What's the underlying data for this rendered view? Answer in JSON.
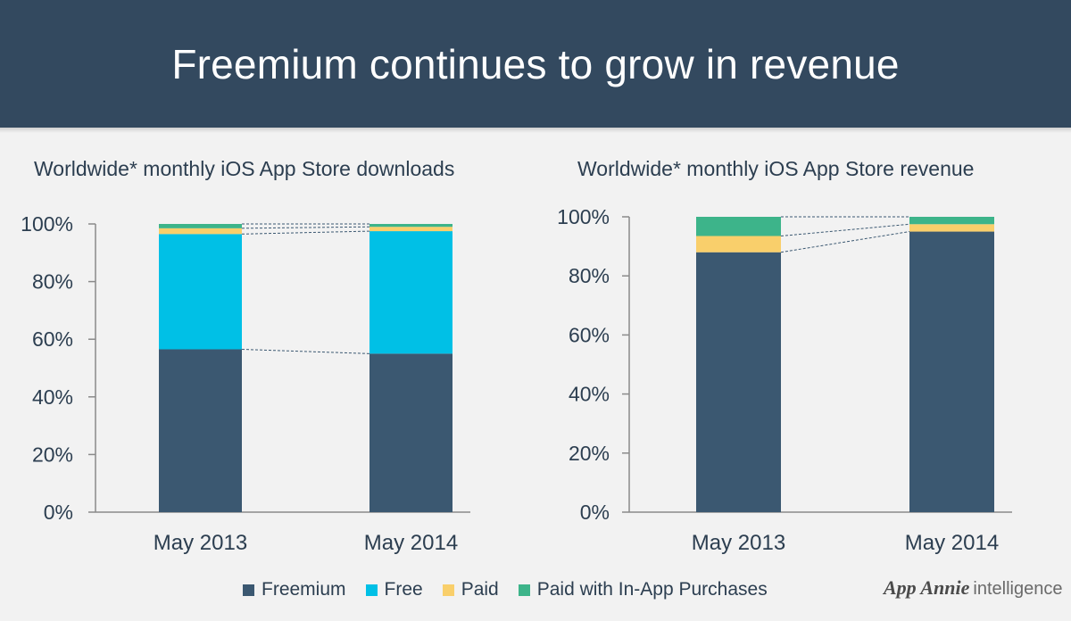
{
  "header": {
    "title": "Freemium continues to grow in revenue"
  },
  "colors": {
    "Freemium": "#3b5871",
    "Free": "#00c0e6",
    "Paid": "#f9cf6b",
    "Paid with In-App Purchases": "#3db48a"
  },
  "legend": [
    "Freemium",
    "Free",
    "Paid",
    "Paid with In-App Purchases"
  ],
  "brand": {
    "logo": "App Annie",
    "suffix": "intelligence"
  },
  "chart_data": [
    {
      "type": "bar",
      "stacked": true,
      "title": "Worldwide* monthly iOS App Store downloads",
      "categories": [
        "May 2013",
        "May 2014"
      ],
      "series": [
        {
          "name": "Freemium",
          "values": [
            56.5,
            55
          ]
        },
        {
          "name": "Free",
          "values": [
            40,
            42.5
          ]
        },
        {
          "name": "Paid",
          "values": [
            2,
            1.5
          ]
        },
        {
          "name": "Paid with In-App Purchases",
          "values": [
            1.5,
            1
          ]
        }
      ],
      "ylim": [
        0,
        100
      ],
      "yticks": [
        "0%",
        "20%",
        "40%",
        "60%",
        "80%",
        "100%"
      ],
      "connectors": true
    },
    {
      "type": "bar",
      "stacked": true,
      "title": "Worldwide* monthly iOS App Store revenue",
      "categories": [
        "May 2013",
        "May 2014"
      ],
      "series": [
        {
          "name": "Freemium",
          "values": [
            88,
            95
          ]
        },
        {
          "name": "Free",
          "values": [
            0,
            0
          ]
        },
        {
          "name": "Paid",
          "values": [
            5.5,
            2.5
          ]
        },
        {
          "name": "Paid with In-App Purchases",
          "values": [
            6.5,
            2.5
          ]
        }
      ],
      "ylim": [
        0,
        100
      ],
      "yticks": [
        "0%",
        "20%",
        "40%",
        "60%",
        "80%",
        "100%"
      ],
      "connectors": true
    }
  ]
}
